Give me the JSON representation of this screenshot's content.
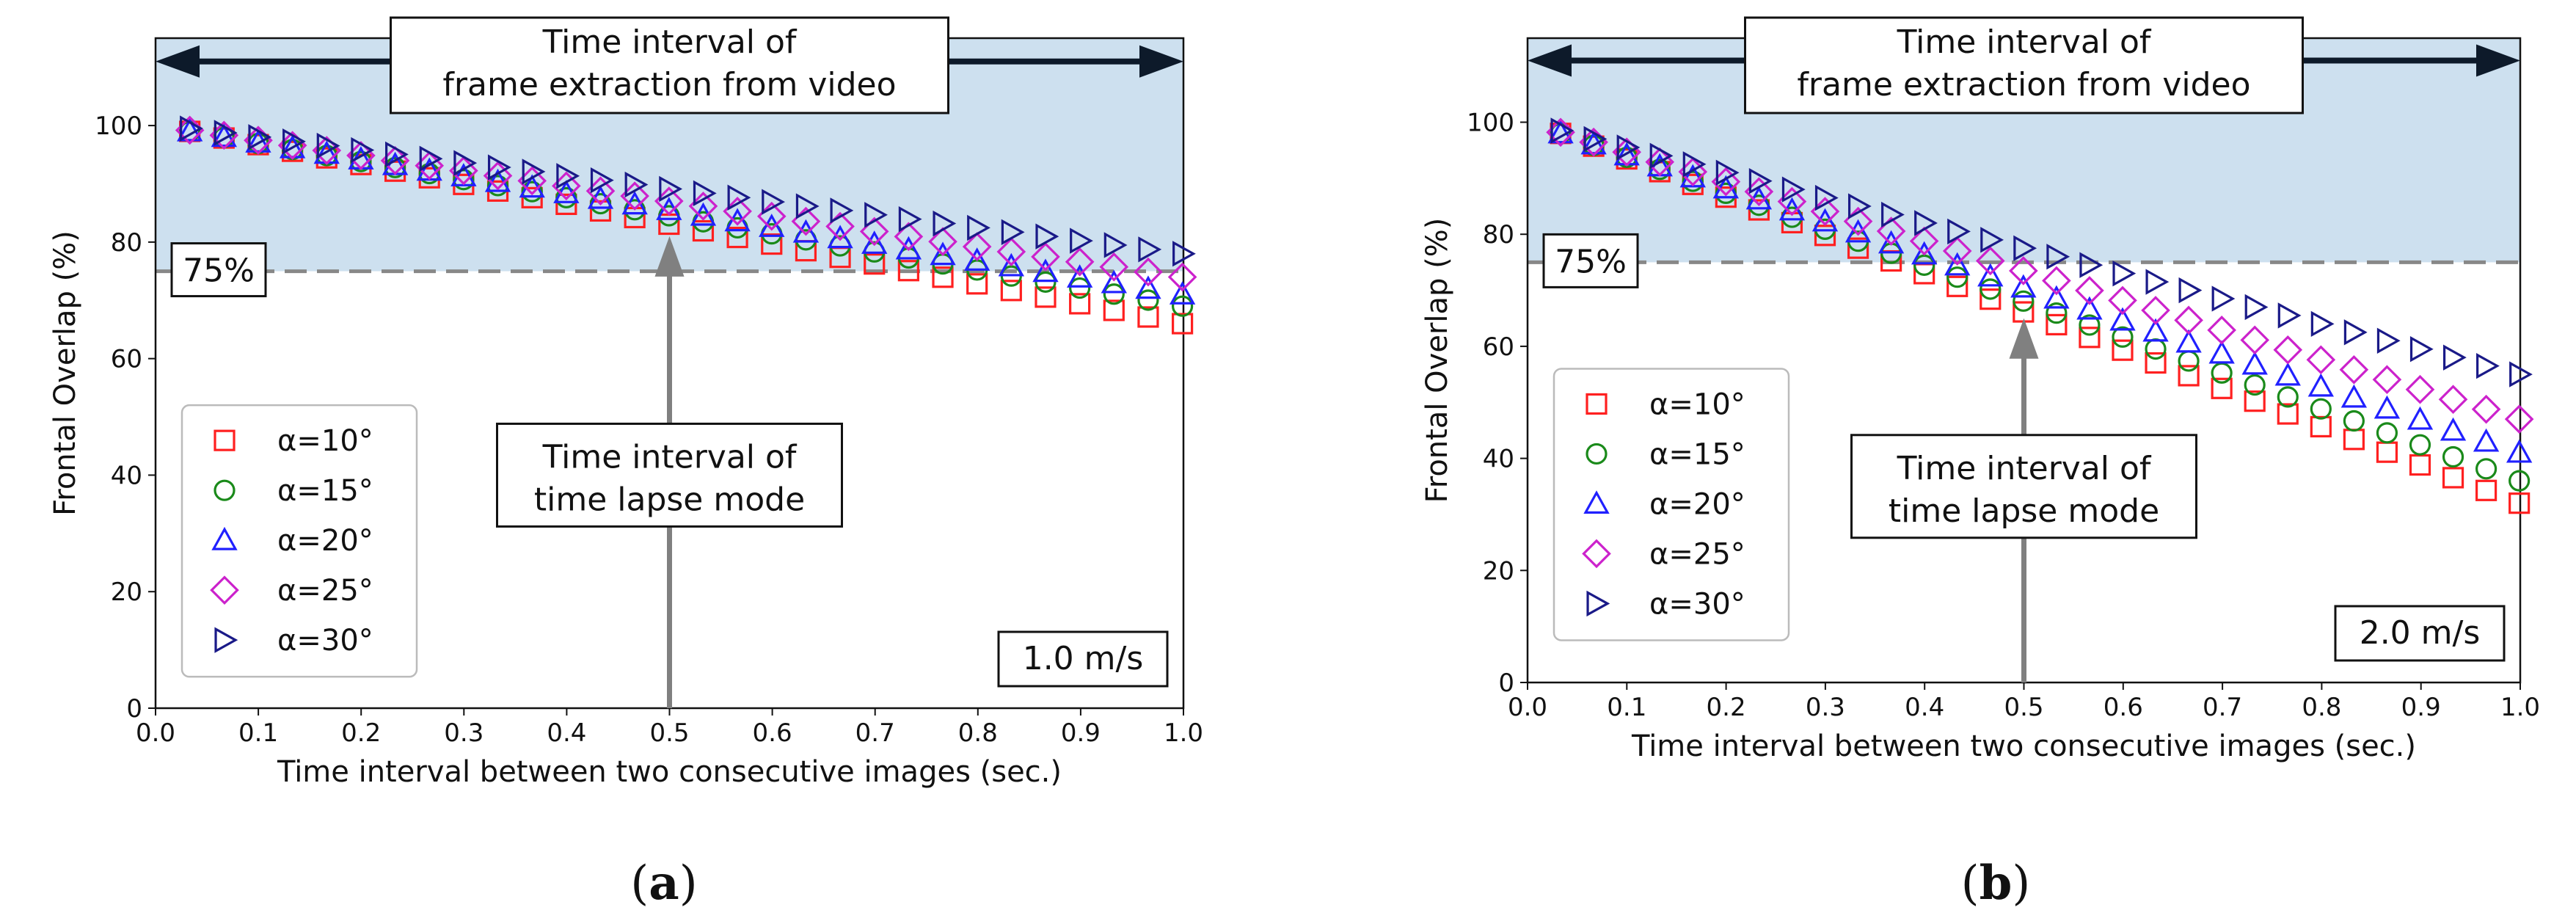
{
  "chart_data": [
    {
      "type": "scatter",
      "panel_label": "a",
      "xlabel": "Time interval between two consecutive images (sec.)",
      "ylabel": "Frontal Overlap (%)",
      "xlim": [
        0.0,
        1.0
      ],
      "ylim": [
        0,
        115
      ],
      "xticks": [
        "0.0",
        "0.1",
        "0.2",
        "0.3",
        "0.4",
        "0.5",
        "0.6",
        "0.7",
        "0.8",
        "0.9",
        "1.0"
      ],
      "yticks": [
        "0",
        "20",
        "40",
        "60",
        "80",
        "100"
      ],
      "shaded_region": {
        "y_from": 75,
        "y_to": 115,
        "color": "#cde0ef"
      },
      "threshold": {
        "y": 75,
        "label": "75%"
      },
      "top_annotation": {
        "line1": "Time interval of",
        "line2": "frame extraction from video"
      },
      "mid_annotation": {
        "line1": "Time interval of",
        "line2": "time lapse mode",
        "x": 0.5
      },
      "speed_label": "1.0 m/s",
      "legend_position": "lower-left",
      "x_step": 0.0333,
      "series": [
        {
          "name": "α=10°",
          "marker": "square",
          "color": "#ff2020",
          "y_start": 99.0,
          "y_end": 66.0
        },
        {
          "name": "α=15°",
          "marker": "circle",
          "color": "#1a8a1a",
          "y_start": 99.0,
          "y_end": 69.0
        },
        {
          "name": "α=20°",
          "marker": "triangle-up",
          "color": "#2020ff",
          "y_start": 99.0,
          "y_end": 71.0
        },
        {
          "name": "α=25°",
          "marker": "diamond",
          "color": "#cc22cc",
          "y_start": 99.2,
          "y_end": 74.0
        },
        {
          "name": "α=30°",
          "marker": "triangle-right",
          "color": "#1a1a88",
          "y_start": 99.5,
          "y_end": 78.0
        }
      ]
    },
    {
      "type": "scatter",
      "panel_label": "b",
      "xlabel": "Time interval between two consecutive images (sec.)",
      "ylabel": "Frontal Overlap (%)",
      "xlim": [
        0.0,
        1.0
      ],
      "ylim": [
        0,
        115
      ],
      "xticks": [
        "0.0",
        "0.1",
        "0.2",
        "0.3",
        "0.4",
        "0.5",
        "0.6",
        "0.7",
        "0.8",
        "0.9",
        "1.0"
      ],
      "yticks": [
        "0",
        "20",
        "40",
        "60",
        "80",
        "100"
      ],
      "shaded_region": {
        "y_from": 75,
        "y_to": 115,
        "color": "#cde0ef"
      },
      "threshold": {
        "y": 75,
        "label": "75%"
      },
      "top_annotation": {
        "line1": "Time interval of",
        "line2": "frame extraction from video"
      },
      "mid_annotation": {
        "line1": "Time interval of",
        "line2": "time lapse mode",
        "x": 0.5
      },
      "speed_label": "2.0 m/s",
      "legend_position": "lower-left",
      "x_step": 0.0333,
      "series": [
        {
          "name": "α=10°",
          "marker": "square",
          "color": "#ff2020",
          "y_start": 98.0,
          "y_end": 32.0
        },
        {
          "name": "α=15°",
          "marker": "circle",
          "color": "#1a8a1a",
          "y_start": 98.0,
          "y_end": 36.0
        },
        {
          "name": "α=20°",
          "marker": "triangle-up",
          "color": "#2020ff",
          "y_start": 98.0,
          "y_end": 41.0
        },
        {
          "name": "α=25°",
          "marker": "diamond",
          "color": "#cc22cc",
          "y_start": 98.2,
          "y_end": 47.0
        },
        {
          "name": "α=30°",
          "marker": "triangle-right",
          "color": "#1a1a88",
          "y_start": 98.5,
          "y_end": 55.0
        }
      ]
    }
  ]
}
